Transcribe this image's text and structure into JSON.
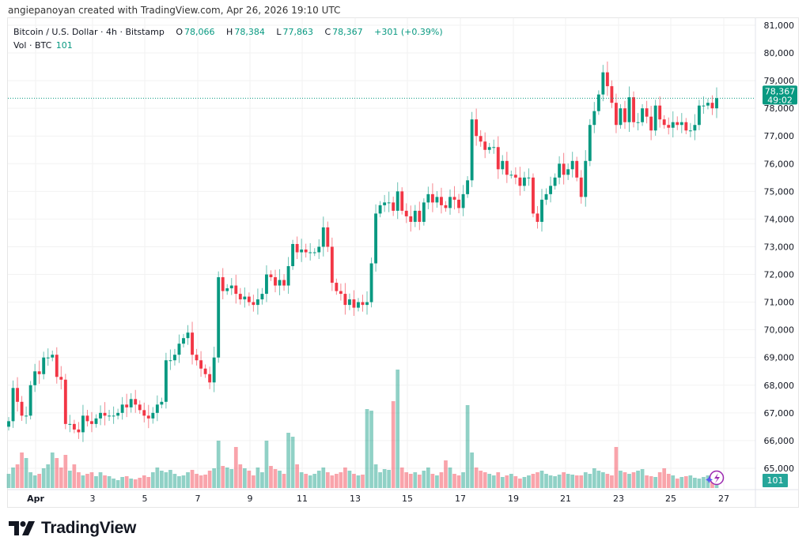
{
  "credit": "angiepanoyan created with TradingView.com, Apr 26, 2026 19:10 UTC",
  "legend": {
    "symbol": "Bitcoin / U.S. Dollar · 4h · Bitstamp",
    "open_label": "O",
    "open": "78,066",
    "high_label": "H",
    "high": "78,384",
    "low_label": "L",
    "low": "77,863",
    "close_label": "C",
    "close": "78,367",
    "change": "+301 (+0.39%)",
    "vol_label": "Vol · BTC",
    "vol": "101"
  },
  "price_badge": {
    "price": "78,367",
    "countdown": "49:02"
  },
  "volume_badge": "101",
  "logo": {
    "text": "TradingView"
  },
  "colors": {
    "up": "#089981",
    "down": "#F23645",
    "grid": "#f2f2f2",
    "axis_text": "#131722"
  },
  "chart_data": {
    "type": "candlestick",
    "interval": "4h",
    "y_ticks": [
      "81,000",
      "80,000",
      "79,000",
      "78,000",
      "77,000",
      "76,000",
      "75,000",
      "74,000",
      "73,000",
      "72,000",
      "71,000",
      "70,000",
      "69,000",
      "68,000",
      "67,000",
      "66,000",
      "65,000"
    ],
    "y_tick_values": [
      81000,
      80000,
      79000,
      78000,
      77000,
      76000,
      75000,
      74000,
      73000,
      72000,
      71000,
      70000,
      69000,
      68000,
      67000,
      66000,
      65000
    ],
    "x_ticks": [
      "Apr",
      "3",
      "5",
      "7",
      "9",
      "11",
      "13",
      "15",
      "17",
      "19",
      "21",
      "23",
      "25",
      "27"
    ],
    "ylim": [
      64400,
      81300
    ],
    "last_price": 78367,
    "closes": [
      66.7,
      67.9,
      67.4,
      66.9,
      66.9,
      68.0,
      68.5,
      68.4,
      69.0,
      69.0,
      69.1,
      68.3,
      68.2,
      66.6,
      66.6,
      66.4,
      66.3,
      66.9,
      66.7,
      66.6,
      66.8,
      67.0,
      66.9,
      66.9,
      66.9,
      67.0,
      67.3,
      67.2,
      67.5,
      67.3,
      67.1,
      66.9,
      66.8,
      67.0,
      67.3,
      67.4,
      68.9,
      68.9,
      69.1,
      69.5,
      69.7,
      69.9,
      69.1,
      68.9,
      68.6,
      68.4,
      68.1,
      69.0,
      71.9,
      71.4,
      71.5,
      71.6,
      71.3,
      71.1,
      71.2,
      71.0,
      70.9,
      71.1,
      71.3,
      72.0,
      71.9,
      71.6,
      71.8,
      71.6,
      72.3,
      73.1,
      72.8,
      72.9,
      72.8,
      72.8,
      72.8,
      73.0,
      73.7,
      73.0,
      71.7,
      71.4,
      71.3,
      70.9,
      71.1,
      70.8,
      71.0,
      70.9,
      71.0,
      72.4,
      74.2,
      74.5,
      74.6,
      74.6,
      74.3,
      75.0,
      74.3,
      74.1,
      73.9,
      74.3,
      73.9,
      74.6,
      74.9,
      74.6,
      74.8,
      74.5,
      74.4,
      74.8,
      74.7,
      74.4,
      74.9,
      75.4,
      77.6,
      77.0,
      76.8,
      76.5,
      76.6,
      76.6,
      75.8,
      76.1,
      75.6,
      75.6,
      75.5,
      75.2,
      75.5,
      75.5,
      74.2,
      73.9,
      74.7,
      74.9,
      75.2,
      75.5,
      76.0,
      75.6,
      75.8,
      76.1,
      75.5,
      74.8,
      76.1,
      77.4,
      77.9,
      78.5,
      79.3,
      78.8,
      78.2,
      77.4,
      78.0,
      77.5,
      78.4,
      77.5,
      77.5,
      78.0,
      77.7,
      77.2,
      78.1,
      77.6,
      77.4,
      77.3,
      77.5,
      77.4,
      77.5,
      77.2,
      77.2,
      77.4,
      78.1,
      78.1,
      78.2,
      78.0,
      78.367
    ],
    "first_open": 66.5,
    "volumes": [
      180,
      260,
      300,
      450,
      380,
      200,
      160,
      180,
      250,
      300,
      450,
      380,
      260,
      420,
      220,
      300,
      200,
      160,
      180,
      200,
      150,
      200,
      160,
      150,
      120,
      100,
      140,
      150,
      120,
      110,
      130,
      160,
      140,
      200,
      260,
      220,
      200,
      230,
      180,
      150,
      160,
      200,
      230,
      180,
      160,
      170,
      220,
      250,
      600,
      280,
      260,
      240,
      520,
      300,
      250,
      220,
      160,
      260,
      200,
      600,
      280,
      240,
      220,
      180,
      700,
      650,
      300,
      200,
      180,
      160,
      180,
      220,
      260,
      200,
      160,
      180,
      200,
      260,
      220,
      180,
      160,
      170,
      1000,
      980,
      300,
      200,
      240,
      230,
      1100,
      1500,
      260,
      200,
      180,
      200,
      170,
      220,
      260,
      180,
      160,
      200,
      350,
      260,
      180,
      160,
      200,
      1050,
      450,
      260,
      220,
      200,
      180,
      160,
      200,
      140,
      160,
      180,
      150,
      120,
      140,
      160,
      180,
      200,
      220,
      180,
      160,
      150,
      170,
      200,
      180,
      170,
      160,
      160,
      200,
      180,
      250,
      220,
      200,
      180,
      160,
      520,
      220,
      200,
      180,
      200,
      220,
      240,
      160,
      150,
      140,
      200,
      250,
      180,
      160,
      120,
      140,
      150,
      160,
      130,
      120,
      140,
      160,
      180,
      100
    ]
  }
}
